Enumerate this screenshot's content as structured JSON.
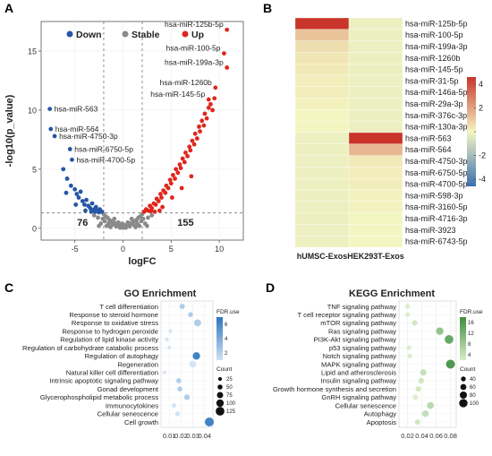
{
  "panels": {
    "a": "A",
    "b": "B",
    "c": "C",
    "d": "D"
  },
  "colors": {
    "down": "#2457a6",
    "stable": "#8a8a8a",
    "up": "#e0261d",
    "heat_low": "#3b6fb0",
    "heat_mid": "#f4f6c2",
    "heat_high": "#c9352b",
    "enrich_light": "#cfe2f3",
    "enrich_dark": "#2e74c0",
    "kegg_light": "#d9ecc9",
    "kegg_dark": "#3e8e3e"
  },
  "chart_data": [
    {
      "type": "scatter",
      "panel": "A",
      "xlabel": "logFC",
      "ylabel": "-log10(p_value)",
      "xlim": [
        -8.5,
        12.5
      ],
      "ylim": [
        -1,
        17.5
      ],
      "xticks": [
        -5,
        0,
        5,
        10
      ],
      "yticks": [
        0,
        5,
        10,
        15
      ],
      "thresholds": {
        "logfc": [
          -2,
          2
        ],
        "neg_log10_p": 1.3
      },
      "legend": [
        {
          "name": "Down",
          "color": "#2457a6"
        },
        {
          "name": "Stable",
          "color": "#8a8a8a"
        },
        {
          "name": "Up",
          "color": "#e0261d"
        }
      ],
      "counts": {
        "down": "76",
        "up": "155"
      },
      "labeled_points": [
        {
          "label": "hsa-miR-125b-5p",
          "x": 10.8,
          "y": 16.8,
          "group": "up"
        },
        {
          "label": "hsa-miR-100-5p",
          "x": 10.5,
          "y": 14.8,
          "group": "up"
        },
        {
          "label": "hsa-miR-199a-3p",
          "x": 10.8,
          "y": 13.6,
          "group": "up"
        },
        {
          "label": "hsa-miR-1260b",
          "x": 9.6,
          "y": 11.9,
          "group": "up"
        },
        {
          "label": "hsa-miR-145-5p",
          "x": 8.9,
          "y": 10.9,
          "group": "up"
        },
        {
          "label": "hsa-miR-563",
          "x": -7.6,
          "y": 10.1,
          "group": "down"
        },
        {
          "label": "hsa-miR-564",
          "x": -7.5,
          "y": 8.4,
          "group": "down"
        },
        {
          "label": "hsa-miR-4750-3p",
          "x": -7.1,
          "y": 7.8,
          "group": "down"
        },
        {
          "label": "hsa-miR-6750-5p",
          "x": -5.5,
          "y": 6.7,
          "group": "down"
        },
        {
          "label": "hsa-miR-4700-5p",
          "x": -5.3,
          "y": 5.8,
          "group": "down"
        }
      ],
      "down_points": [
        [
          -6.2,
          5.0
        ],
        [
          -5.8,
          4.2
        ],
        [
          -5.4,
          3.6
        ],
        [
          -5.0,
          3.3
        ],
        [
          -4.8,
          2.9
        ],
        [
          -4.6,
          2.6
        ],
        [
          -4.4,
          3.1
        ],
        [
          -4.2,
          2.3
        ],
        [
          -4.0,
          2.0
        ],
        [
          -3.8,
          2.4
        ],
        [
          -3.6,
          1.9
        ],
        [
          -3.4,
          1.7
        ],
        [
          -3.2,
          2.1
        ],
        [
          -3.0,
          1.6
        ],
        [
          -2.8,
          1.8
        ],
        [
          -2.6,
          1.5
        ],
        [
          -2.4,
          1.6
        ],
        [
          -2.2,
          1.4
        ],
        [
          -5.9,
          3.0
        ],
        [
          -4.9,
          2.0
        ],
        [
          -3.9,
          1.5
        ],
        [
          -3.3,
          1.4
        ],
        [
          -2.9,
          1.4
        ],
        [
          -2.5,
          1.35
        ]
      ],
      "up_points": [
        [
          2.2,
          1.4
        ],
        [
          2.4,
          1.6
        ],
        [
          2.6,
          1.5
        ],
        [
          2.8,
          1.9
        ],
        [
          3.0,
          1.7
        ],
        [
          3.2,
          2.1
        ],
        [
          3.4,
          2.0
        ],
        [
          3.5,
          2.5
        ],
        [
          3.7,
          2.3
        ],
        [
          3.9,
          2.9
        ],
        [
          4.0,
          2.6
        ],
        [
          4.2,
          3.2
        ],
        [
          4.4,
          3.0
        ],
        [
          4.5,
          3.6
        ],
        [
          4.7,
          3.4
        ],
        [
          4.9,
          4.1
        ],
        [
          5.0,
          3.8
        ],
        [
          5.2,
          4.5
        ],
        [
          5.4,
          4.2
        ],
        [
          5.5,
          5.0
        ],
        [
          5.7,
          4.7
        ],
        [
          5.9,
          5.4
        ],
        [
          6.0,
          5.1
        ],
        [
          6.2,
          5.9
        ],
        [
          6.4,
          5.6
        ],
        [
          6.5,
          6.4
        ],
        [
          6.7,
          6.1
        ],
        [
          6.9,
          6.9
        ],
        [
          7.0,
          6.6
        ],
        [
          7.2,
          7.4
        ],
        [
          7.4,
          7.1
        ],
        [
          7.5,
          8.0
        ],
        [
          7.7,
          7.6
        ],
        [
          7.9,
          8.6
        ],
        [
          8.0,
          8.2
        ],
        [
          8.2,
          9.1
        ],
        [
          8.4,
          8.7
        ],
        [
          8.5,
          9.7
        ],
        [
          8.7,
          9.3
        ],
        [
          8.9,
          10.2
        ],
        [
          9.1,
          10.5
        ],
        [
          9.3,
          10.0
        ],
        [
          9.5,
          11.0
        ],
        [
          3.3,
          1.4
        ],
        [
          4.1,
          1.8
        ],
        [
          5.1,
          2.6
        ],
        [
          6.1,
          3.4
        ],
        [
          7.1,
          4.4
        ],
        [
          2.9,
          1.45
        ],
        [
          3.8,
          1.5
        ]
      ],
      "stable_points": [
        [
          -2.0,
          1.2
        ],
        [
          -1.8,
          1.0
        ],
        [
          -1.6,
          0.9
        ],
        [
          -1.4,
          0.7
        ],
        [
          -1.2,
          0.6
        ],
        [
          -1.0,
          0.5
        ],
        [
          -0.8,
          0.4
        ],
        [
          -0.6,
          0.3
        ],
        [
          -0.4,
          0.2
        ],
        [
          -0.2,
          0.1
        ],
        [
          0.0,
          0.05
        ],
        [
          0.2,
          0.1
        ],
        [
          0.4,
          0.2
        ],
        [
          0.6,
          0.3
        ],
        [
          0.8,
          0.4
        ],
        [
          1.0,
          0.5
        ],
        [
          1.2,
          0.6
        ],
        [
          1.4,
          0.7
        ],
        [
          1.6,
          0.9
        ],
        [
          1.8,
          1.0
        ],
        [
          2.0,
          1.2
        ],
        [
          -1.9,
          0.6
        ],
        [
          -1.5,
          0.4
        ],
        [
          -1.1,
          0.3
        ],
        [
          -0.7,
          0.15
        ],
        [
          -0.3,
          0.05
        ],
        [
          0.3,
          0.05
        ],
        [
          0.7,
          0.15
        ],
        [
          1.1,
          0.3
        ],
        [
          1.5,
          0.4
        ],
        [
          1.9,
          0.6
        ],
        [
          -2.6,
          0.9
        ],
        [
          -3.0,
          1.1
        ],
        [
          2.6,
          0.9
        ],
        [
          3.0,
          1.1
        ],
        [
          -1.7,
          0.2
        ],
        [
          1.7,
          0.2
        ],
        [
          -1.3,
          0.1
        ],
        [
          1.3,
          0.1
        ],
        [
          -0.5,
          0.5
        ],
        [
          0.5,
          0.5
        ],
        [
          -0.9,
          0.8
        ],
        [
          0.9,
          0.8
        ],
        [
          -2.3,
          0.4
        ],
        [
          2.3,
          0.4
        ],
        [
          -2.1,
          0.8
        ],
        [
          2.1,
          0.8
        ],
        [
          0.1,
          0.3
        ],
        [
          -0.1,
          0.4
        ],
        [
          2.5,
          0.2
        ],
        [
          -2.5,
          0.2
        ]
      ]
    },
    {
      "type": "heatmap",
      "panel": "B",
      "columns": [
        "hUMSC-Exos",
        "HEK293T-Exos"
      ],
      "rows": [
        "hsa-miR-125b-5p",
        "hsa-miR-100-5p",
        "hsa-miR-199a-3p",
        "hsa-miR-1260b",
        "hsa-miR-145-5p",
        "hsa-miR-31-5p",
        "hsa-miR-146a-5p",
        "hsa-miR-29a-3p",
        "hsa-miR-376c-3p",
        "hsa-miR-130a-3p",
        "hsa-miR-563",
        "hsa-miR-564",
        "hsa-miR-4750-3p",
        "hsa-miR-6750-5p",
        "hsa-miR-4700-5p",
        "hsa-miR-598-3p",
        "hsa-miR-3160-5p",
        "hsa-miR-4716-3p",
        "hsa-miR-3923",
        "hsa-miR-6743-5p"
      ],
      "values": [
        [
          4.6,
          -0.2
        ],
        [
          1.2,
          -0.2
        ],
        [
          0.6,
          -0.2
        ],
        [
          0.4,
          -0.2
        ],
        [
          0.3,
          -0.2
        ],
        [
          0.2,
          -0.2
        ],
        [
          0.2,
          -0.2
        ],
        [
          0.1,
          -0.2
        ],
        [
          0.0,
          -0.2
        ],
        [
          0.0,
          -0.2
        ],
        [
          -0.2,
          4.6
        ],
        [
          -0.2,
          1.5
        ],
        [
          -0.2,
          0.3
        ],
        [
          -0.2,
          0.2
        ],
        [
          -0.2,
          0.2
        ],
        [
          -0.2,
          0.1
        ],
        [
          -0.2,
          0.1
        ],
        [
          -0.2,
          0.0
        ],
        [
          -0.2,
          0.0
        ],
        [
          -0.2,
          0.0
        ]
      ],
      "scale": {
        "min": -4.6,
        "max": 4.6,
        "ticks": [
          4,
          2,
          0,
          -2,
          -4
        ],
        "tick_labels": [
          "4",
          "2",
          "",
          "-2",
          "-4"
        ]
      }
    },
    {
      "type": "scatter",
      "panel": "C",
      "title": "GO Enrichment",
      "xticks": [
        0.01,
        0.02,
        0.03,
        0.04
      ],
      "xlim": [
        0.003,
        0.047
      ],
      "legend_fdr": {
        "title": "FDR.use",
        "ticks": [
          "6",
          "4",
          "2"
        ]
      },
      "legend_count": {
        "title": "Count",
        "values": [
          "25",
          "50",
          "75",
          "100",
          "125"
        ]
      },
      "terms": [
        {
          "term": "T cell differentiation",
          "x": 0.021,
          "count": 55,
          "fdr": 3
        },
        {
          "term": "Response to steroid hormone",
          "x": 0.028,
          "count": 50,
          "fdr": 3
        },
        {
          "term": "Response to oxidative stress",
          "x": 0.034,
          "count": 90,
          "fdr": 3
        },
        {
          "term": "Response to hydrogen peroxide",
          "x": 0.011,
          "count": 25,
          "fdr": 2
        },
        {
          "term": "Regulation of lipid kinase activity",
          "x": 0.008,
          "count": 25,
          "fdr": 2
        },
        {
          "term": "Regulation of carbohydrate catabolic process",
          "x": 0.01,
          "count": 25,
          "fdr": 2
        },
        {
          "term": "Regulation of autophagy",
          "x": 0.033,
          "count": 100,
          "fdr": 6
        },
        {
          "term": "Regeneration",
          "x": 0.03,
          "count": 90,
          "fdr": 2
        },
        {
          "term": "Natural killer cell differentiation",
          "x": 0.006,
          "count": 20,
          "fdr": 2
        },
        {
          "term": "Intrinsic apoptotic signaling pathway",
          "x": 0.018,
          "count": 50,
          "fdr": 3
        },
        {
          "term": "Gonad development",
          "x": 0.019,
          "count": 50,
          "fdr": 3
        },
        {
          "term": "Glycerophospholipid metabolic process",
          "x": 0.025,
          "count": 65,
          "fdr": 3
        },
        {
          "term": "Immunocytokines",
          "x": 0.014,
          "count": 40,
          "fdr": 2
        },
        {
          "term": "Cellular senescence",
          "x": 0.017,
          "count": 50,
          "fdr": 2
        },
        {
          "term": "Cell growth",
          "x": 0.044,
          "count": 130,
          "fdr": 6
        }
      ]
    },
    {
      "type": "scatter",
      "panel": "D",
      "title": "KEGG Enrichment",
      "xticks": [
        0.02,
        0.04,
        0.06,
        0.08
      ],
      "xlim": [
        0.008,
        0.088
      ],
      "legend_fdr": {
        "title": "FDR.use",
        "ticks": [
          "16",
          "12",
          "8",
          "4"
        ]
      },
      "legend_count": {
        "title": "Count",
        "values": [
          "40",
          "60",
          "80",
          "100"
        ]
      },
      "terms": [
        {
          "term": "TNF signaling pathway",
          "x": 0.02,
          "count": 40,
          "fdr": 4
        },
        {
          "term": "T cell receptor signaling pathway",
          "x": 0.02,
          "count": 40,
          "fdr": 4
        },
        {
          "term": "mTOR signaling pathway",
          "x": 0.03,
          "count": 50,
          "fdr": 5
        },
        {
          "term": "Ras signaling pathway",
          "x": 0.065,
          "count": 85,
          "fdr": 10
        },
        {
          "term": "PI3K-Akt signaling pathway",
          "x": 0.078,
          "count": 105,
          "fdr": 14
        },
        {
          "term": "p53 signaling pathway",
          "x": 0.022,
          "count": 40,
          "fdr": 4
        },
        {
          "term": "Notch signaling pathway",
          "x": 0.023,
          "count": 40,
          "fdr": 4
        },
        {
          "term": "MAPK signaling pathway",
          "x": 0.08,
          "count": 110,
          "fdr": 16
        },
        {
          "term": "Lipid and atherosclerosis",
          "x": 0.042,
          "count": 65,
          "fdr": 6
        },
        {
          "term": "Insulin signaling pathway",
          "x": 0.039,
          "count": 55,
          "fdr": 5
        },
        {
          "term": "Growth hormone synthesis and secretion",
          "x": 0.035,
          "count": 50,
          "fdr": 5
        },
        {
          "term": "GnRH signaling pathway",
          "x": 0.031,
          "count": 50,
          "fdr": 4
        },
        {
          "term": "Cellular senescence",
          "x": 0.052,
          "count": 75,
          "fdr": 7
        },
        {
          "term": "Autophagy",
          "x": 0.045,
          "count": 70,
          "fdr": 6
        },
        {
          "term": "Apoptosis",
          "x": 0.034,
          "count": 50,
          "fdr": 5
        }
      ]
    }
  ]
}
